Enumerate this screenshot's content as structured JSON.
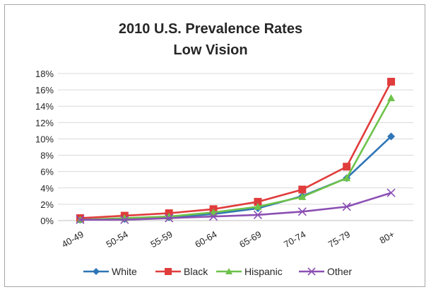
{
  "chart_data": {
    "type": "line",
    "title": "2010 U.S. Prevalence Rates",
    "subtitle": "Low Vision",
    "categories": [
      "40-49",
      "50-54",
      "55-59",
      "60-64",
      "65-69",
      "70-74",
      "75-79",
      "80+"
    ],
    "yticks": [
      "0%",
      "2%",
      "4%",
      "6%",
      "8%",
      "10%",
      "12%",
      "14%",
      "16%",
      "18%"
    ],
    "ylim": [
      0,
      18
    ],
    "grid": true,
    "legend": "bottom",
    "series": [
      {
        "name": "White",
        "color": "#2e75b6",
        "marker": "diamond",
        "values": [
          0.1,
          0.2,
          0.4,
          0.8,
          1.5,
          3.0,
          5.2,
          10.3
        ]
      },
      {
        "name": "Black",
        "color": "#e03c3c",
        "marker": "square",
        "values": [
          0.3,
          0.6,
          0.9,
          1.4,
          2.3,
          3.8,
          6.6,
          17.0
        ]
      },
      {
        "name": "Hispanic",
        "color": "#6ec24a",
        "marker": "triangle",
        "values": [
          0.1,
          0.3,
          0.5,
          1.0,
          1.7,
          2.9,
          5.2,
          15.0
        ]
      },
      {
        "name": "Other",
        "color": "#8b4fb3",
        "marker": "x",
        "values": [
          0.1,
          0.1,
          0.3,
          0.5,
          0.7,
          1.1,
          1.7,
          3.4
        ]
      }
    ]
  }
}
